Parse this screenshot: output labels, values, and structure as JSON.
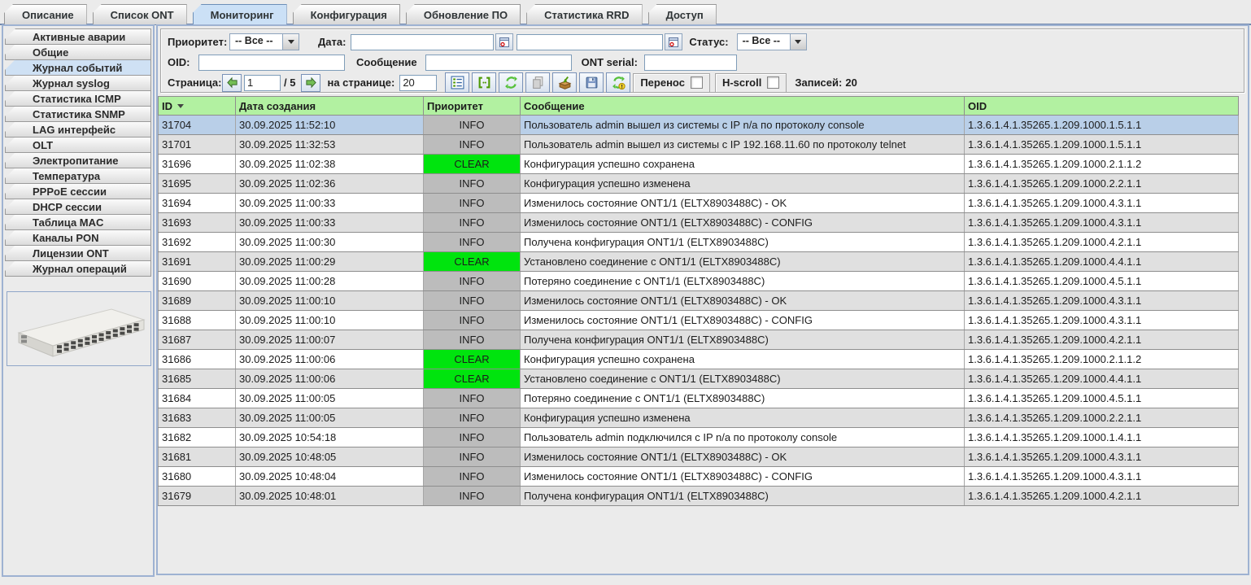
{
  "tabs": {
    "items": [
      "Описание",
      "Список ONT",
      "Мониторинг",
      "Конфигурация",
      "Обновление ПО",
      "Статистика RRD",
      "Доступ"
    ],
    "active": "Мониторинг"
  },
  "sidebar": {
    "items": [
      "Активные аварии",
      "Общие",
      "Журнал событий",
      "Журнал syslog",
      "Статистика ICMP",
      "Статистика SNMP",
      "LAG интерфейс",
      "OLT",
      "Электропитание",
      "Температура",
      "PPPoE сессии",
      "DHCP сессии",
      "Таблица MAC",
      "Каналы PON",
      "Лицензии ONT",
      "Журнал операций"
    ],
    "active": "Журнал событий",
    "device_image": "olt-switch-photo"
  },
  "filters": {
    "priority_label": "Приоритет:",
    "priority_value": "-- Все --",
    "date_label": "Дата:",
    "date_from": "",
    "date_to": "",
    "status_label": "Статус:",
    "status_value": "-- Все --",
    "oid_label": "OID:",
    "oid_value": "",
    "message_label": "Сообщение",
    "message_value": "",
    "ont_serial_label": "ONT serial:",
    "ont_serial_value": "",
    "calendar_icon": "calendar-icon"
  },
  "pagination": {
    "page_label": "Страница:",
    "page_value": "1",
    "page_total": "/ 5",
    "prev_icon": "green-arrow-left-icon",
    "next_icon": "green-arrow-right-icon",
    "per_page_label": "на странице:",
    "per_page_value": "20",
    "wrap_label": "Перенос",
    "wrap_checked": false,
    "hscroll_label": "H-scroll",
    "hscroll_checked": false,
    "records_label": "Записей:",
    "records_value": "20"
  },
  "toolbar": {
    "buttons": [
      {
        "name": "show-details-button",
        "icon": "list-view-icon"
      },
      {
        "name": "fit-columns-button",
        "icon": "fit-columns-icon"
      },
      {
        "name": "refresh-button",
        "icon": "refresh-icon"
      },
      {
        "name": "copy-button",
        "icon": "copy-icon"
      },
      {
        "name": "export-button",
        "icon": "export-box-icon"
      },
      {
        "name": "save-button",
        "icon": "save-icon"
      },
      {
        "name": "auto-refresh-button",
        "icon": "refresh-warning-icon"
      }
    ]
  },
  "table": {
    "columns": [
      "ID",
      "Дата создания",
      "Приоритет",
      "Сообщение",
      "OID"
    ],
    "sort_column": "ID",
    "sort_direction": "desc",
    "selected_row_id": "31704",
    "rows": [
      {
        "id": "31704",
        "date": "30.09.2025 11:52:10",
        "priority": "INFO",
        "message": "Пользователь admin вышел из системы с IP n/a по протоколу console",
        "oid": "1.3.6.1.4.1.35265.1.209.1000.1.5.1.1"
      },
      {
        "id": "31701",
        "date": "30.09.2025 11:32:53",
        "priority": "INFO",
        "message": "Пользователь admin вышел из системы с IP 192.168.11.60 по протоколу telnet",
        "oid": "1.3.6.1.4.1.35265.1.209.1000.1.5.1.1"
      },
      {
        "id": "31696",
        "date": "30.09.2025 11:02:38",
        "priority": "CLEAR",
        "message": "Конфигурация успешно сохранена",
        "oid": "1.3.6.1.4.1.35265.1.209.1000.2.1.1.2"
      },
      {
        "id": "31695",
        "date": "30.09.2025 11:02:36",
        "priority": "INFO",
        "message": "Конфигурация успешно изменена",
        "oid": "1.3.6.1.4.1.35265.1.209.1000.2.2.1.1"
      },
      {
        "id": "31694",
        "date": "30.09.2025 11:00:33",
        "priority": "INFO",
        "message": "Изменилось состояние ONT1/1 (ELTX8903488C) - OK",
        "oid": "1.3.6.1.4.1.35265.1.209.1000.4.3.1.1"
      },
      {
        "id": "31693",
        "date": "30.09.2025 11:00:33",
        "priority": "INFO",
        "message": "Изменилось состояние ONT1/1 (ELTX8903488C) - CONFIG",
        "oid": "1.3.6.1.4.1.35265.1.209.1000.4.3.1.1"
      },
      {
        "id": "31692",
        "date": "30.09.2025 11:00:30",
        "priority": "INFO",
        "message": "Получена конфигурация ONT1/1 (ELTX8903488C)",
        "oid": "1.3.6.1.4.1.35265.1.209.1000.4.2.1.1"
      },
      {
        "id": "31691",
        "date": "30.09.2025 11:00:29",
        "priority": "CLEAR",
        "message": "Установлено соединение с ONT1/1 (ELTX8903488C)",
        "oid": "1.3.6.1.4.1.35265.1.209.1000.4.4.1.1"
      },
      {
        "id": "31690",
        "date": "30.09.2025 11:00:28",
        "priority": "INFO",
        "message": "Потеряно соединение с ONT1/1 (ELTX8903488C)",
        "oid": "1.3.6.1.4.1.35265.1.209.1000.4.5.1.1"
      },
      {
        "id": "31689",
        "date": "30.09.2025 11:00:10",
        "priority": "INFO",
        "message": "Изменилось состояние ONT1/1 (ELTX8903488C) - OK",
        "oid": "1.3.6.1.4.1.35265.1.209.1000.4.3.1.1"
      },
      {
        "id": "31688",
        "date": "30.09.2025 11:00:10",
        "priority": "INFO",
        "message": "Изменилось состояние ONT1/1 (ELTX8903488C) - CONFIG",
        "oid": "1.3.6.1.4.1.35265.1.209.1000.4.3.1.1"
      },
      {
        "id": "31687",
        "date": "30.09.2025 11:00:07",
        "priority": "INFO",
        "message": "Получена конфигурация ONT1/1 (ELTX8903488C)",
        "oid": "1.3.6.1.4.1.35265.1.209.1000.4.2.1.1"
      },
      {
        "id": "31686",
        "date": "30.09.2025 11:00:06",
        "priority": "CLEAR",
        "message": "Конфигурация успешно сохранена",
        "oid": "1.3.6.1.4.1.35265.1.209.1000.2.1.1.2"
      },
      {
        "id": "31685",
        "date": "30.09.2025 11:00:06",
        "priority": "CLEAR",
        "message": "Установлено соединение с ONT1/1 (ELTX8903488C)",
        "oid": "1.3.6.1.4.1.35265.1.209.1000.4.4.1.1"
      },
      {
        "id": "31684",
        "date": "30.09.2025 11:00:05",
        "priority": "INFO",
        "message": "Потеряно соединение с ONT1/1 (ELTX8903488C)",
        "oid": "1.3.6.1.4.1.35265.1.209.1000.4.5.1.1"
      },
      {
        "id": "31683",
        "date": "30.09.2025 11:00:05",
        "priority": "INFO",
        "message": "Конфигурация успешно изменена",
        "oid": "1.3.6.1.4.1.35265.1.209.1000.2.2.1.1"
      },
      {
        "id": "31682",
        "date": "30.09.2025 10:54:18",
        "priority": "INFO",
        "message": "Пользователь admin подключился с IP n/a по протоколу console",
        "oid": "1.3.6.1.4.1.35265.1.209.1000.1.4.1.1"
      },
      {
        "id": "31681",
        "date": "30.09.2025 10:48:05",
        "priority": "INFO",
        "message": "Изменилось состояние ONT1/1 (ELTX8903488C) - OK",
        "oid": "1.3.6.1.4.1.35265.1.209.1000.4.3.1.1"
      },
      {
        "id": "31680",
        "date": "30.09.2025 10:48:04",
        "priority": "INFO",
        "message": "Изменилось состояние ONT1/1 (ELTX8903488C) - CONFIG",
        "oid": "1.3.6.1.4.1.35265.1.209.1000.4.3.1.1"
      },
      {
        "id": "31679",
        "date": "30.09.2025 10:48:01",
        "priority": "INFO",
        "message": "Получена конфигурация ONT1/1 (ELTX8903488C)",
        "oid": "1.3.6.1.4.1.35265.1.209.1000.4.2.1.1"
      }
    ]
  },
  "colors": {
    "header_green": "#b2f1a1",
    "clear_green": "#00e40e",
    "info_grey": "#bcbcbc",
    "selected_row_blue": "#b9cfe8",
    "alt_row_grey": "#e0e0e0",
    "active_tab_blue": "#cbe0f6"
  }
}
